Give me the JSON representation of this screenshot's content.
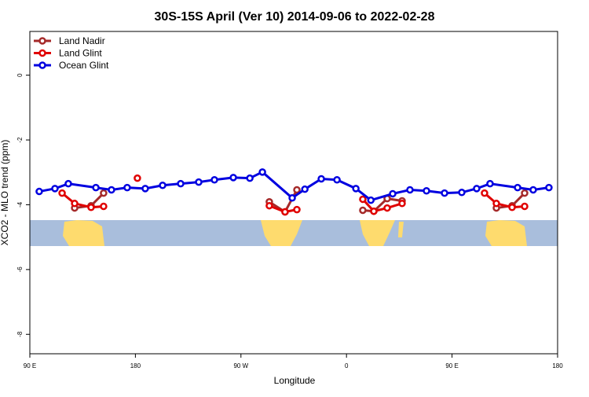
{
  "chart_data": {
    "type": "line",
    "title": "30S-15S April (Ver 10)   2014-09-06 to 2022-02-28",
    "x_label": "Longitude",
    "y_label": "XCO2 - MLO trend (ppm)",
    "xlim": [
      90,
      540
    ],
    "ylim": [
      -8.6,
      1.35
    ],
    "xticks": [
      {
        "value": 90,
        "label": "90 E"
      },
      {
        "value": 180,
        "label": "180"
      },
      {
        "value": 270,
        "label": "90 W"
      },
      {
        "value": 360,
        "label": "0"
      },
      {
        "value": 450,
        "label": "90 E"
      },
      {
        "value": 540,
        "label": "180"
      }
    ],
    "yticks": [
      0,
      -2,
      -4,
      -6,
      -8
    ],
    "legend": "top-left",
    "series": [
      {
        "name": "Land Nadir",
        "color": "#a52a2a",
        "x": [
          128.2,
          142.2,
          152.9,
          null,
          294.2,
          307.6,
          317.7,
          null,
          373.9,
          383.3,
          394.7,
          407.4,
          null,
          487.8,
          501.2,
          511.9
        ],
        "values": [
          -4.1,
          -4.03,
          -3.64,
          null,
          -3.91,
          -4.22,
          -3.54,
          null,
          -4.17,
          -4.2,
          -3.81,
          -3.88,
          null,
          -4.1,
          -4.03,
          -3.64
        ]
      },
      {
        "name": "Land Glint",
        "color": "#e00000",
        "x": [
          117.5,
          128.2,
          142.2,
          152.9,
          null,
          181.7,
          null,
          294.2,
          307.6,
          317.7,
          null,
          373.9,
          383.3,
          394.7,
          407.4,
          null,
          477.7,
          487.8,
          501.2,
          511.9
        ],
        "values": [
          -3.64,
          -3.96,
          -4.08,
          -4.05,
          null,
          -3.18,
          null,
          -4.03,
          -4.22,
          -4.15,
          null,
          -3.83,
          -4.2,
          -4.1,
          -3.96,
          null,
          -3.64,
          -3.96,
          -4.08,
          -4.05
        ]
      },
      {
        "name": "Ocean Glint",
        "color": "#0000e0",
        "x": [
          98.0,
          111.4,
          122.8,
          146.3,
          159.6,
          173.0,
          188.4,
          203.2,
          218.6,
          234.0,
          247.4,
          263.5,
          277.6,
          288.3,
          313.7,
          324.5,
          338.5,
          351.9,
          368.0,
          380.8,
          399.4,
          414.1,
          428.2,
          443.6,
          458.3,
          471.0,
          482.4,
          505.9,
          519.2,
          532.6
        ],
        "values": [
          -3.59,
          -3.5,
          -3.35,
          -3.47,
          -3.54,
          -3.47,
          -3.5,
          -3.4,
          -3.35,
          -3.3,
          -3.23,
          -3.16,
          -3.18,
          -2.99,
          -3.79,
          -3.52,
          -3.2,
          -3.23,
          -3.5,
          -3.86,
          -3.66,
          -3.54,
          -3.57,
          -3.64,
          -3.62,
          -3.5,
          -3.35,
          -3.47,
          -3.54,
          -3.47
        ]
      }
    ]
  }
}
